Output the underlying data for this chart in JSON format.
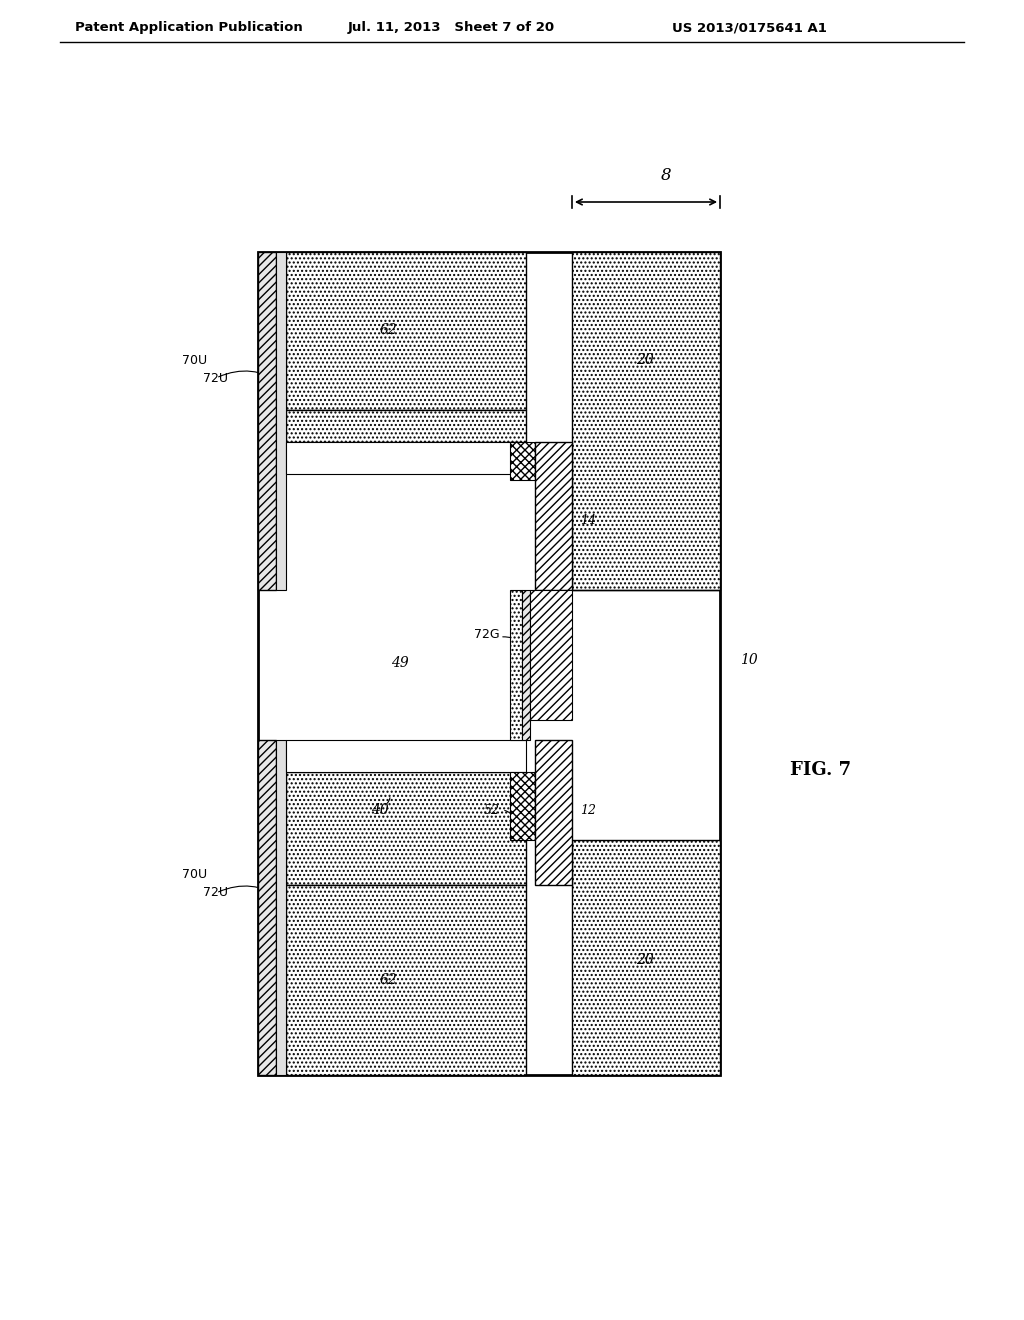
{
  "title_left": "Patent Application Publication",
  "title_mid": "Jul. 11, 2013   Sheet 7 of 20",
  "title_right": "US 2013/0175641 A1",
  "fig_label": "FIG. 7",
  "bg_color": "#ffffff"
}
